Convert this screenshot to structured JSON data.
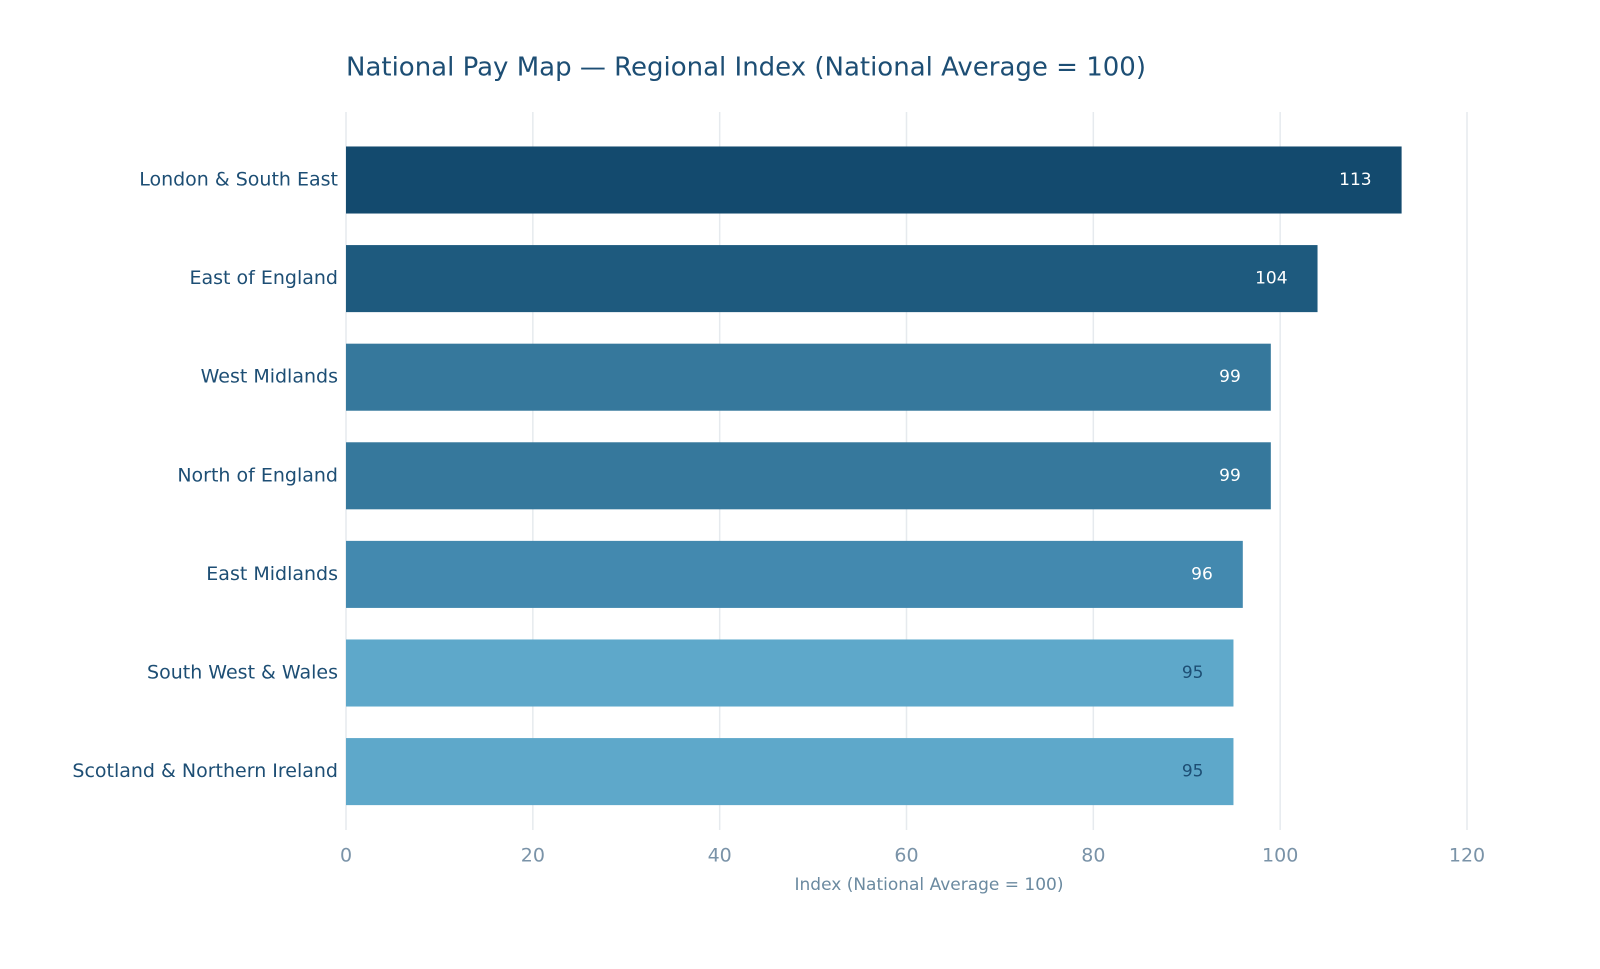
{
  "chart_data": {
    "type": "bar",
    "orientation": "horizontal",
    "title": "National Pay Map — Regional Index (National Average = 100)",
    "x_label": "Index (National Average = 100)",
    "categories": [
      "London & South East",
      "East of England",
      "West Midlands",
      "North of England",
      "East Midlands",
      "South West & Wales",
      "Scotland & Northern Ireland"
    ],
    "values": [
      113,
      104,
      99,
      99,
      96,
      95,
      95
    ],
    "colors": [
      "#134a6e",
      "#1e5a7e",
      "#36789c",
      "#36789c",
      "#4389af",
      "#5ea8ca",
      "#5ea8ca"
    ],
    "xlim": [
      0,
      120
    ],
    "xticks": [
      0,
      20,
      40,
      60,
      80,
      100,
      120
    ],
    "grid": true
  }
}
